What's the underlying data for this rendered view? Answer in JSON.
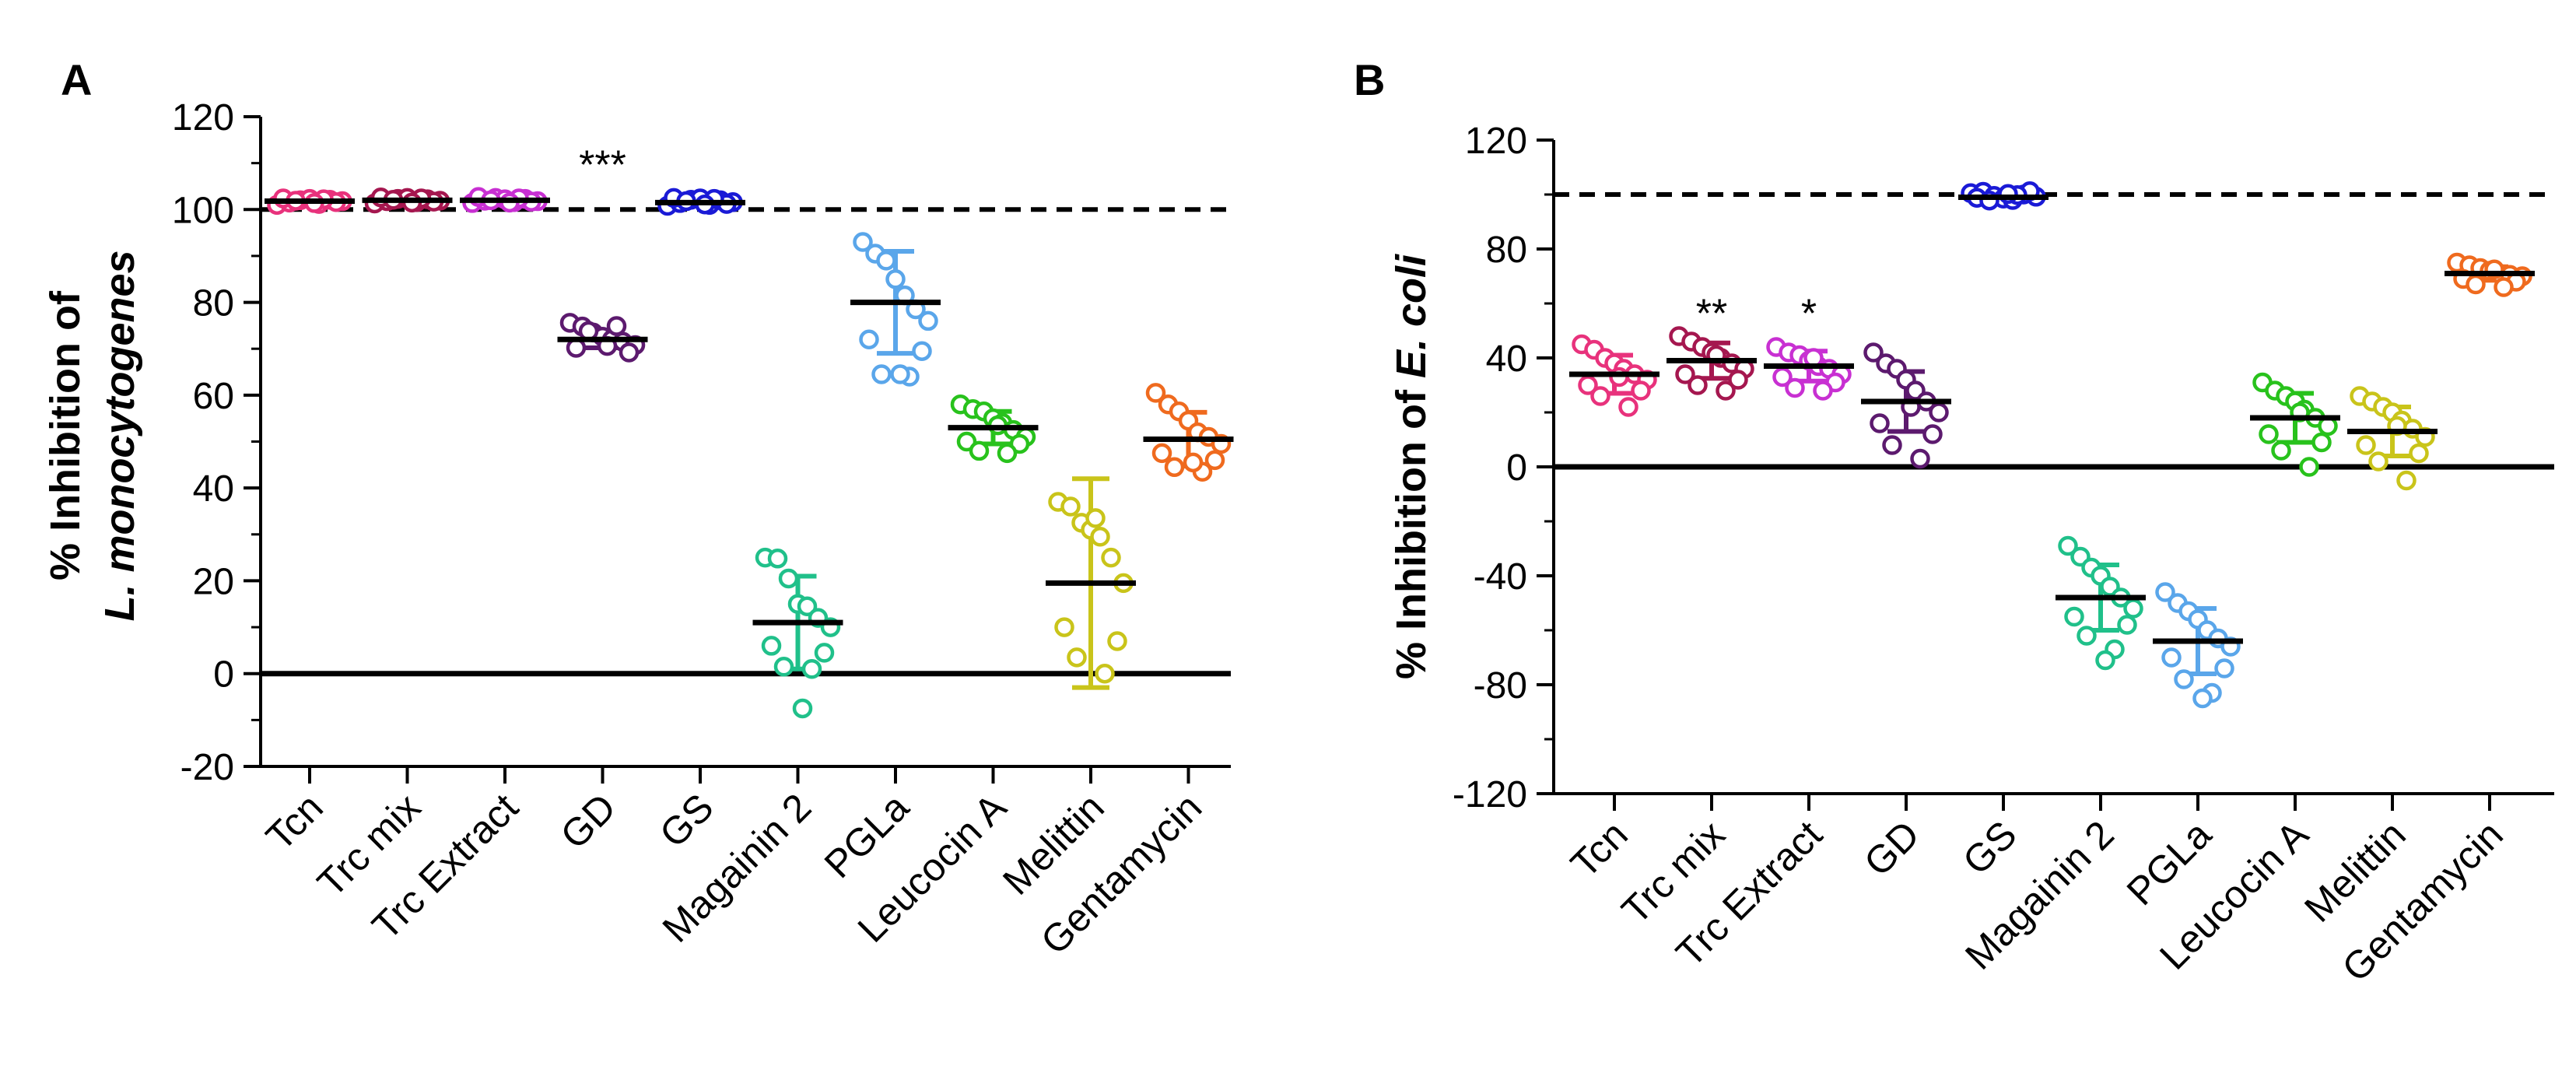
{
  "figure_colors": {
    "Tcn": "#e8327c",
    "Trc mix": "#a5174f",
    "Trc Extract": "#c830d2",
    "GD": "#5c1a6e",
    "GS": "#1a1ad6",
    "Magainin 2": "#20c08a",
    "PGLa": "#5aa6ea",
    "Leucocin A": "#28c21c",
    "Melittin": "#c9c41a",
    "Gentamycin": "#ef6a1e"
  },
  "chart_data": [
    {
      "type": "scatter",
      "panel": "A",
      "title": "",
      "ylabel_prefix": "% Inhibition of",
      "ylabel_species": "L. monocytogenes",
      "ylim": [
        -20,
        120
      ],
      "yticks": [
        120,
        100,
        80,
        60,
        40,
        20,
        0,
        -20
      ],
      "grid": false,
      "reference_lines": {
        "dashed": 100,
        "solid": 0
      },
      "categories": [
        "Tcn",
        "Trc mix",
        "Trc Extract",
        "GD",
        "GS",
        "Magainin 2",
        "PGLa",
        "Leucocin A",
        "Melittin",
        "Gentamycin"
      ],
      "series": [
        {
          "name": "Tcn",
          "mean": 101.8,
          "sd": 0.6,
          "points": [
            101.0,
            101.5,
            102.0,
            102.3,
            101.2,
            102.1,
            101.8,
            102.4,
            101.6,
            101.9,
            102.2,
            101.4
          ]
        },
        {
          "name": "Trc mix",
          "mean": 102.0,
          "sd": 0.6,
          "points": [
            101.3,
            101.8,
            102.3,
            102.5,
            101.6,
            102.2,
            101.9,
            102.6,
            101.7,
            102.1,
            102.4,
            101.5
          ]
        },
        {
          "name": "Trc Extract",
          "mean": 102.0,
          "sd": 0.6,
          "points": [
            101.4,
            101.9,
            102.5,
            102.2,
            101.6,
            102.3,
            101.8,
            102.7,
            101.7,
            102.0,
            102.4,
            101.5
          ]
        },
        {
          "name": "GD",
          "mean": 72.0,
          "sd": 1.8,
          "points": [
            75.6,
            74.8,
            73.5,
            72.6,
            72.0,
            71.5,
            70.8,
            70.2,
            69.2,
            73.8,
            74.9,
            70.6
          ]
        },
        {
          "name": "GS",
          "mean": 101.5,
          "sd": 0.7,
          "points": [
            100.8,
            101.4,
            102.1,
            102.4,
            101.0,
            102.0,
            101.6,
            102.5,
            101.2,
            101.8,
            102.3,
            101.1
          ]
        },
        {
          "name": "Magainin 2",
          "mean": 11.0,
          "sd": 10.0,
          "points": [
            25.0,
            24.8,
            20.5,
            15.0,
            14.5,
            12.0,
            10.0,
            6.0,
            4.5,
            1.5,
            1.0,
            -7.5
          ]
        },
        {
          "name": "PGLa",
          "mean": 80.0,
          "sd": 11.0,
          "points": [
            93.0,
            90.5,
            89.0,
            85.0,
            81.5,
            78.5,
            76.0,
            72.0,
            69.5,
            64.5,
            64.0,
            64.5
          ]
        },
        {
          "name": "Leucocin A",
          "mean": 53.0,
          "sd": 3.5,
          "points": [
            58.0,
            57.0,
            56.5,
            55.0,
            54.0,
            52.5,
            51.0,
            50.0,
            49.5,
            48.0,
            47.5,
            53.5
          ]
        },
        {
          "name": "Melittin",
          "mean": 19.5,
          "sd": 22.5,
          "points": [
            37.0,
            36.0,
            32.5,
            31.0,
            29.5,
            25.0,
            19.5,
            10.0,
            7.0,
            3.5,
            0.0,
            33.5
          ]
        },
        {
          "name": "Gentamycin",
          "mean": 50.5,
          "sd": 5.8,
          "points": [
            60.5,
            58.0,
            56.5,
            54.5,
            52.0,
            51.0,
            49.5,
            47.5,
            46.0,
            44.5,
            43.5,
            45.5
          ]
        }
      ],
      "annotations": [
        {
          "category": "GD",
          "text": "***",
          "y": 110
        }
      ]
    },
    {
      "type": "scatter",
      "panel": "B",
      "title": "",
      "ylabel_prefix": "% Inhibition of",
      "ylabel_species": "E. coli",
      "ylim": [
        -120,
        120
      ],
      "yticks": [
        120,
        80,
        40,
        0,
        -40,
        -80,
        -120
      ],
      "grid": false,
      "reference_lines": {
        "dashed": 100,
        "solid": 0
      },
      "categories": [
        "Tcn",
        "Trc mix",
        "Trc Extract",
        "GD",
        "GS",
        "Magainin 2",
        "PGLa",
        "Leucocin A",
        "Melittin",
        "Gentamycin"
      ],
      "series": [
        {
          "name": "Tcn",
          "mean": 34.0,
          "sd": 7.0,
          "points": [
            45.0,
            43.0,
            40.0,
            38.0,
            36.0,
            34.0,
            32.0,
            30.0,
            28.0,
            26.0,
            22.0,
            33.0
          ]
        },
        {
          "name": "Trc mix",
          "mean": 39.0,
          "sd": 6.5,
          "points": [
            48.0,
            46.0,
            44.0,
            42.0,
            40.0,
            38.0,
            36.0,
            34.0,
            32.0,
            30.0,
            28.0,
            41.0
          ]
        },
        {
          "name": "Trc Extract",
          "mean": 37.0,
          "sd": 5.5,
          "points": [
            44.0,
            42.0,
            41.0,
            39.0,
            37.0,
            36.0,
            34.0,
            33.0,
            31.0,
            29.0,
            28.0,
            40.0
          ]
        },
        {
          "name": "GD",
          "mean": 24.0,
          "sd": 11.0,
          "points": [
            42.0,
            38.0,
            36.0,
            32.0,
            28.0,
            24.0,
            20.0,
            16.0,
            12.0,
            8.0,
            3.0,
            22.0
          ]
        },
        {
          "name": "GS",
          "mean": 99.0,
          "sd": 1.2,
          "points": [
            100.5,
            101.0,
            99.5,
            98.5,
            98.0,
            100.0,
            99.2,
            98.8,
            101.2,
            97.8,
            99.8,
            100.2
          ]
        },
        {
          "name": "Magainin 2",
          "mean": -48.0,
          "sd": 12.0,
          "points": [
            -29.0,
            -33.0,
            -37.0,
            -40.0,
            -44.0,
            -48.0,
            -52.0,
            -55.0,
            -58.0,
            -62.0,
            -67.0,
            -71.0
          ]
        },
        {
          "name": "PGLa",
          "mean": -64.0,
          "sd": 12.0,
          "points": [
            -46.0,
            -50.0,
            -53.0,
            -56.0,
            -60.0,
            -63.0,
            -66.0,
            -70.0,
            -74.0,
            -78.0,
            -83.0,
            -85.0
          ]
        },
        {
          "name": "Leucocin A",
          "mean": 18.0,
          "sd": 9.0,
          "points": [
            31.0,
            28.0,
            26.0,
            24.0,
            21.0,
            18.0,
            15.0,
            12.0,
            9.0,
            6.0,
            0.0,
            20.0
          ]
        },
        {
          "name": "Melittin",
          "mean": 13.0,
          "sd": 9.0,
          "points": [
            26.0,
            24.0,
            22.0,
            20.0,
            17.0,
            14.0,
            11.0,
            8.0,
            5.0,
            2.0,
            -5.0,
            15.0
          ]
        },
        {
          "name": "Gentamycin",
          "mean": 71.0,
          "sd": 2.5,
          "points": [
            75.0,
            74.0,
            73.0,
            72.0,
            71.0,
            70.5,
            70.0,
            69.0,
            68.0,
            67.0,
            66.0,
            72.5
          ]
        }
      ],
      "annotations": [
        {
          "category": "Trc mix",
          "text": "**",
          "y": 57
        },
        {
          "category": "Trc Extract",
          "text": "*",
          "y": 57
        }
      ]
    }
  ]
}
